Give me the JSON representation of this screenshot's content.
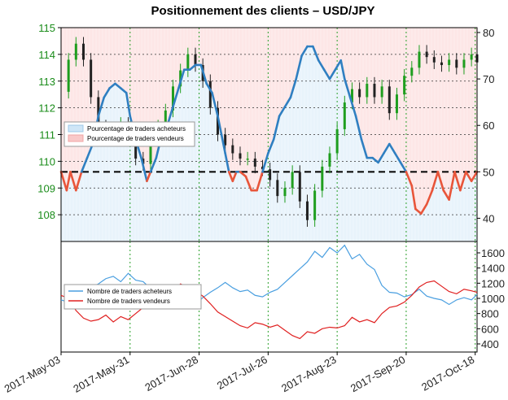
{
  "title": "Positionnement des clients – USD/JPY",
  "chart_data": [
    {
      "type": "candlestick+line",
      "panel": "top",
      "left_axis": {
        "ticks": [
          "115",
          "114",
          "113",
          "112",
          "111",
          "110",
          "109",
          "108"
        ],
        "range": [
          107,
          115
        ]
      },
      "right_axis": {
        "ticks": [
          "80",
          "70",
          "60",
          "50",
          "40"
        ],
        "range": [
          35,
          80
        ]
      },
      "x_ticks": [
        "2017-May-03",
        "2017-May-31",
        "2017-Jun-28",
        "2017-Jul-26",
        "2017-Aug-23",
        "2017-Sep-20",
        "2017-Oct-18"
      ],
      "reference_line": 50,
      "legend": [
        {
          "label": "Pourcentage de traders acheteurs",
          "color": "#cfe6f7"
        },
        {
          "label": "Pourcentage de traders vendeurs",
          "color": "#f9c9c9"
        }
      ],
      "pct_buyers": [
        [
          0,
          50
        ],
        [
          3,
          46
        ],
        [
          5,
          50
        ],
        [
          8,
          46
        ],
        [
          11,
          50
        ],
        [
          14,
          53
        ],
        [
          17,
          56
        ],
        [
          20,
          62
        ],
        [
          23,
          66
        ],
        [
          26,
          68
        ],
        [
          29,
          69
        ],
        [
          32,
          68
        ],
        [
          35,
          67
        ],
        [
          37,
          62
        ],
        [
          40,
          57
        ],
        [
          43,
          53
        ],
        [
          46,
          48
        ],
        [
          48,
          50
        ],
        [
          51,
          53
        ],
        [
          54,
          58
        ],
        [
          57,
          60
        ],
        [
          60,
          64
        ],
        [
          63,
          68
        ],
        [
          66,
          72
        ],
        [
          69,
          72
        ],
        [
          72,
          73
        ],
        [
          75,
          73
        ],
        [
          78,
          69
        ],
        [
          81,
          67
        ],
        [
          84,
          62
        ],
        [
          86,
          58
        ],
        [
          88,
          54
        ],
        [
          90,
          50
        ],
        [
          92,
          48
        ],
        [
          94,
          50
        ],
        [
          96,
          50
        ],
        [
          99,
          49
        ],
        [
          102,
          46
        ],
        [
          105,
          46
        ],
        [
          108,
          50
        ],
        [
          111,
          54
        ],
        [
          114,
          57
        ],
        [
          117,
          62
        ],
        [
          120,
          64
        ],
        [
          123,
          66
        ],
        [
          126,
          70
        ],
        [
          129,
          75
        ],
        [
          132,
          77
        ],
        [
          135,
          77
        ],
        [
          138,
          74
        ],
        [
          141,
          72
        ],
        [
          144,
          70
        ],
        [
          147,
          72
        ],
        [
          150,
          74
        ],
        [
          152,
          70
        ],
        [
          155,
          66
        ],
        [
          158,
          62
        ],
        [
          161,
          57
        ],
        [
          164,
          53
        ],
        [
          167,
          53
        ],
        [
          170,
          52
        ],
        [
          173,
          54
        ],
        [
          176,
          56
        ],
        [
          179,
          54
        ],
        [
          182,
          52
        ],
        [
          185,
          50
        ],
        [
          188,
          47
        ],
        [
          190,
          42
        ],
        [
          193,
          41
        ],
        [
          196,
          43
        ],
        [
          199,
          46
        ],
        [
          202,
          50
        ],
        [
          205,
          46
        ],
        [
          208,
          44
        ],
        [
          211,
          50
        ],
        [
          214,
          46
        ],
        [
          217,
          50
        ],
        [
          220,
          48
        ],
        [
          223,
          50
        ]
      ],
      "usdjpy_close": [
        [
          0,
          112.6
        ],
        [
          4,
          113.8
        ],
        [
          8,
          114.4
        ],
        [
          12,
          113.8
        ],
        [
          16,
          112.4
        ],
        [
          20,
          111.3
        ],
        [
          24,
          111.0
        ],
        [
          28,
          110.8
        ],
        [
          32,
          111.4
        ],
        [
          36,
          110.9
        ],
        [
          40,
          110.1
        ],
        [
          44,
          109.9
        ],
        [
          48,
          110.9
        ],
        [
          52,
          111.3
        ],
        [
          56,
          111.9
        ],
        [
          60,
          112.8
        ],
        [
          64,
          113.4
        ],
        [
          68,
          114.0
        ],
        [
          72,
          113.6
        ],
        [
          76,
          113.0
        ],
        [
          80,
          112.0
        ],
        [
          84,
          111.0
        ],
        [
          88,
          110.6
        ],
        [
          92,
          110.3
        ],
        [
          96,
          110.1
        ],
        [
          100,
          110.1
        ],
        [
          104,
          109.8
        ],
        [
          108,
          109.7
        ],
        [
          112,
          109.3
        ],
        [
          116,
          108.7
        ],
        [
          120,
          109.0
        ],
        [
          124,
          109.6
        ],
        [
          128,
          108.5
        ],
        [
          132,
          107.8
        ],
        [
          136,
          108.9
        ],
        [
          140,
          109.8
        ],
        [
          144,
          110.3
        ],
        [
          148,
          111.2
        ],
        [
          152,
          112.2
        ],
        [
          156,
          112.7
        ],
        [
          160,
          112.4
        ],
        [
          164,
          112.9
        ],
        [
          168,
          112.4
        ],
        [
          172,
          112.8
        ],
        [
          176,
          111.8
        ],
        [
          180,
          112.5
        ],
        [
          184,
          113.2
        ],
        [
          188,
          113.5
        ],
        [
          192,
          114.1
        ],
        [
          196,
          113.9
        ],
        [
          200,
          113.7
        ],
        [
          204,
          113.6
        ],
        [
          208,
          113.8
        ],
        [
          212,
          113.5
        ],
        [
          216,
          113.8
        ],
        [
          220,
          114.0
        ],
        [
          223,
          113.7
        ]
      ]
    },
    {
      "type": "line",
      "panel": "bottom",
      "right_axis": {
        "ticks": [
          "1600",
          "1400",
          "1200",
          "1000",
          "800",
          "600",
          "400"
        ],
        "range": [
          400,
          1750
        ]
      },
      "legend": [
        {
          "label": "Nombre de traders acheteurs",
          "color": "#4a9fe0"
        },
        {
          "label": "Nombre de traders vendeurs",
          "color": "#e02020"
        }
      ],
      "buyers": [
        [
          0,
          980
        ],
        [
          4,
          950
        ],
        [
          8,
          1010
        ],
        [
          12,
          1070
        ],
        [
          16,
          1150
        ],
        [
          20,
          1190
        ],
        [
          24,
          1260
        ],
        [
          28,
          1290
        ],
        [
          32,
          1220
        ],
        [
          36,
          1330
        ],
        [
          40,
          1240
        ],
        [
          44,
          1220
        ],
        [
          48,
          1130
        ],
        [
          52,
          1040
        ],
        [
          56,
          1090
        ],
        [
          60,
          1020
        ],
        [
          64,
          900
        ],
        [
          68,
          940
        ],
        [
          72,
          920
        ],
        [
          76,
          1010
        ],
        [
          80,
          1080
        ],
        [
          84,
          1140
        ],
        [
          88,
          1210
        ],
        [
          92,
          1140
        ],
        [
          96,
          1090
        ],
        [
          100,
          1110
        ],
        [
          104,
          1040
        ],
        [
          108,
          1020
        ],
        [
          112,
          1080
        ],
        [
          116,
          1120
        ],
        [
          120,
          1210
        ],
        [
          124,
          1300
        ],
        [
          128,
          1390
        ],
        [
          132,
          1480
        ],
        [
          136,
          1620
        ],
        [
          140,
          1540
        ],
        [
          144,
          1670
        ],
        [
          148,
          1600
        ],
        [
          152,
          1700
        ],
        [
          156,
          1520
        ],
        [
          160,
          1580
        ],
        [
          164,
          1450
        ],
        [
          168,
          1380
        ],
        [
          172,
          1170
        ],
        [
          176,
          1080
        ],
        [
          180,
          1070
        ],
        [
          184,
          1020
        ],
        [
          188,
          1050
        ],
        [
          192,
          1120
        ],
        [
          196,
          1030
        ],
        [
          200,
          1000
        ],
        [
          204,
          980
        ],
        [
          208,
          920
        ],
        [
          212,
          980
        ],
        [
          216,
          1010
        ],
        [
          220,
          980
        ],
        [
          223,
          1050
        ]
      ],
      "sellers": [
        [
          0,
          1040
        ],
        [
          4,
          1000
        ],
        [
          8,
          840
        ],
        [
          12,
          740
        ],
        [
          16,
          700
        ],
        [
          20,
          720
        ],
        [
          24,
          780
        ],
        [
          28,
          690
        ],
        [
          32,
          760
        ],
        [
          36,
          720
        ],
        [
          40,
          800
        ],
        [
          44,
          880
        ],
        [
          48,
          980
        ],
        [
          52,
          1040
        ],
        [
          56,
          1020
        ],
        [
          60,
          1080
        ],
        [
          64,
          1190
        ],
        [
          68,
          1150
        ],
        [
          72,
          1100
        ],
        [
          76,
          1030
        ],
        [
          80,
          930
        ],
        [
          84,
          820
        ],
        [
          88,
          760
        ],
        [
          92,
          700
        ],
        [
          96,
          640
        ],
        [
          100,
          610
        ],
        [
          104,
          680
        ],
        [
          108,
          660
        ],
        [
          112,
          620
        ],
        [
          116,
          650
        ],
        [
          120,
          580
        ],
        [
          124,
          510
        ],
        [
          128,
          470
        ],
        [
          132,
          560
        ],
        [
          136,
          540
        ],
        [
          140,
          600
        ],
        [
          144,
          620
        ],
        [
          148,
          610
        ],
        [
          152,
          640
        ],
        [
          156,
          750
        ],
        [
          160,
          690
        ],
        [
          164,
          720
        ],
        [
          168,
          680
        ],
        [
          172,
          800
        ],
        [
          176,
          880
        ],
        [
          180,
          900
        ],
        [
          184,
          950
        ],
        [
          188,
          1040
        ],
        [
          192,
          1150
        ],
        [
          196,
          1210
        ],
        [
          200,
          1230
        ],
        [
          204,
          1160
        ],
        [
          208,
          1090
        ],
        [
          212,
          1060
        ],
        [
          216,
          1120
        ],
        [
          220,
          1100
        ],
        [
          223,
          1080
        ]
      ]
    }
  ]
}
